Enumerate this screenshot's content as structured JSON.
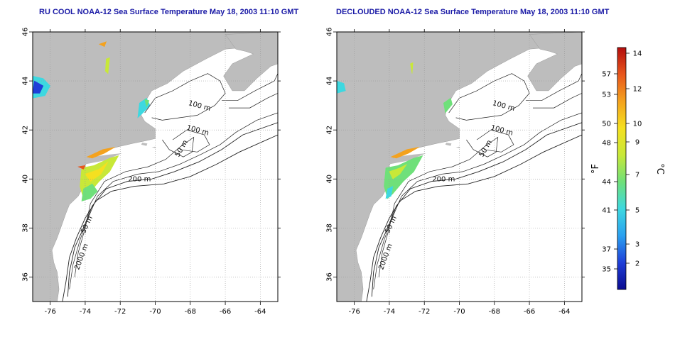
{
  "panels": [
    {
      "title": "RU COOL NOAA-12 Sea Surface Temperature May 18, 2003 11:10 GMT",
      "kind": "raw"
    },
    {
      "title": "DECLOUDED NOAA-12 Sea Surface Temperature May 18, 2003 11:10 GMT",
      "kind": "declouded"
    }
  ],
  "map": {
    "lon_range": [
      -77,
      -63
    ],
    "lat_range": [
      35,
      46
    ],
    "lon_ticks": [
      "-76",
      "-74",
      "-72",
      "-70",
      "-68",
      "-66",
      "-64"
    ],
    "lat_ticks": [
      "36",
      "38",
      "40",
      "42",
      "44",
      "46"
    ],
    "land_color": "#bdbdbd",
    "ocean_color": "#ffffff",
    "grid": true,
    "contour_labels": [
      "100 m",
      "100 m",
      "50 m",
      "200 m",
      "50 m",
      "2000 m"
    ]
  },
  "colorbar": {
    "fahrenheit_ticks": [
      "57",
      "53",
      "50",
      "48",
      "44",
      "41",
      "37",
      "35"
    ],
    "celsius_ticks": [
      "14",
      "12",
      "10",
      "9",
      "7",
      "5",
      "3",
      "2"
    ],
    "fahrenheit_label": "°F",
    "celsius_label": "°C",
    "colors": [
      "#0b0b8f",
      "#1f3fd8",
      "#2aa0f0",
      "#3dd8e0",
      "#6fe07a",
      "#c8e838",
      "#f5e020",
      "#f4a21e",
      "#e8561c",
      "#b30d0d"
    ]
  }
}
